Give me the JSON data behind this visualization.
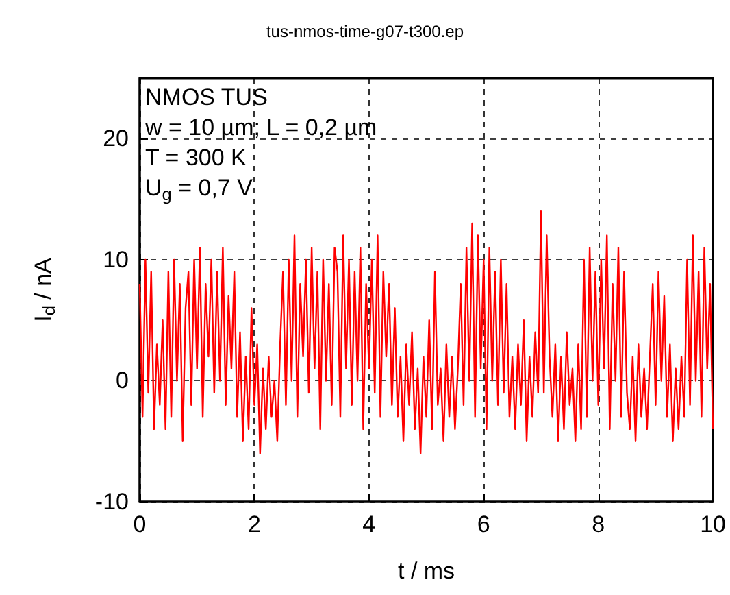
{
  "chart_data": {
    "type": "line",
    "title": "tus-nmos-time-g07-t300.ep",
    "xlabel": "t / ms",
    "ylabel": "I$_{d}$ / nA",
    "annotations": [
      "NMOS TUS",
      "w = 10 µm; L = 0,2 µm",
      "T = 300 K",
      "U$_{g}$ = 0,7 V"
    ],
    "x": [
      0,
      0.05,
      0.1,
      0.15,
      0.2,
      0.25,
      0.3,
      0.35,
      0.4,
      0.45,
      0.5,
      0.55,
      0.6,
      0.65,
      0.7,
      0.75,
      0.8,
      0.85,
      0.9,
      0.95,
      1,
      1.05,
      1.1,
      1.15,
      1.2,
      1.25,
      1.3,
      1.35,
      1.4,
      1.45,
      1.5,
      1.55,
      1.6,
      1.65,
      1.7,
      1.75,
      1.8,
      1.85,
      1.9,
      1.95,
      2,
      2.05,
      2.1,
      2.15,
      2.2,
      2.25,
      2.3,
      2.35,
      2.4,
      2.45,
      2.5,
      2.55,
      2.6,
      2.65,
      2.7,
      2.75,
      2.8,
      2.85,
      2.9,
      2.95,
      3,
      3.05,
      3.1,
      3.15,
      3.2,
      3.25,
      3.3,
      3.35,
      3.4,
      3.45,
      3.5,
      3.55,
      3.6,
      3.65,
      3.7,
      3.75,
      3.8,
      3.85,
      3.9,
      3.95,
      4,
      4.05,
      4.1,
      4.15,
      4.2,
      4.25,
      4.3,
      4.35,
      4.4,
      4.45,
      4.5,
      4.55,
      4.6,
      4.65,
      4.7,
      4.75,
      4.8,
      4.85,
      4.9,
      4.95,
      5,
      5.05,
      5.1,
      5.15,
      5.2,
      5.25,
      5.3,
      5.35,
      5.4,
      5.45,
      5.5,
      5.55,
      5.6,
      5.65,
      5.7,
      5.75,
      5.8,
      5.85,
      5.9,
      5.95,
      6,
      6.05,
      6.1,
      6.15,
      6.2,
      6.25,
      6.3,
      6.35,
      6.4,
      6.45,
      6.5,
      6.55,
      6.6,
      6.65,
      6.7,
      6.75,
      6.8,
      6.85,
      6.9,
      6.95,
      7,
      7.05,
      7.1,
      7.15,
      7.2,
      7.25,
      7.3,
      7.35,
      7.4,
      7.45,
      7.5,
      7.55,
      7.6,
      7.65,
      7.7,
      7.75,
      7.8,
      7.85,
      7.9,
      7.95,
      8,
      8.05,
      8.1,
      8.15,
      8.2,
      8.25,
      8.3,
      8.35,
      8.4,
      8.45,
      8.5,
      8.55,
      8.6,
      8.65,
      8.7,
      8.75,
      8.8,
      8.85,
      8.9,
      8.95,
      9,
      9.05,
      9.1,
      9.15,
      9.2,
      9.25,
      9.3,
      9.35,
      9.4,
      9.45,
      9.5,
      9.55,
      9.6,
      9.65,
      9.7,
      9.75,
      9.8,
      9.85,
      9.9,
      9.95,
      10
    ],
    "series": [
      {
        "color": "#ff0000",
        "values": [
          8,
          -3,
          10,
          -1,
          9,
          -4,
          3,
          -2,
          5,
          -4,
          9,
          -3,
          10,
          0,
          8,
          -5,
          6,
          9,
          -2,
          10,
          1,
          11,
          -3,
          8,
          2,
          10,
          -1,
          9,
          0,
          11,
          -2,
          7,
          1,
          9,
          -3,
          4,
          -5,
          2,
          -4,
          6,
          -2,
          3,
          -6,
          1,
          -4,
          2,
          -3,
          0,
          -5,
          3,
          9,
          -2,
          10,
          0,
          12,
          -3,
          8,
          2,
          10,
          -1,
          11,
          1,
          9,
          -4,
          10,
          0,
          8,
          -2,
          11,
          9,
          -3,
          12,
          1,
          10,
          -2,
          9,
          0,
          11,
          -4,
          8,
          1,
          10,
          -1,
          12,
          -3,
          9,
          2,
          8,
          -2,
          6,
          -3,
          2,
          -5,
          3,
          -2,
          4,
          -4,
          1,
          -6,
          2,
          -3,
          5,
          -4,
          9,
          -2,
          1,
          -5,
          3,
          -3,
          2,
          -4,
          1,
          8,
          -2,
          11,
          0,
          13,
          -3,
          12,
          1,
          10,
          -4,
          11,
          0,
          9,
          -2,
          10,
          -1,
          8,
          -3,
          2,
          -4,
          3,
          -2,
          5,
          -5,
          2,
          -3,
          4,
          -1,
          14,
          -1,
          12,
          2,
          -3,
          3,
          -5,
          2,
          -4,
          4,
          -2,
          1,
          -5,
          3,
          -4,
          10,
          -3,
          11,
          0,
          9,
          -2,
          10,
          1,
          12,
          -4,
          8,
          0,
          11,
          -3,
          9,
          -1,
          -4,
          2,
          -5,
          3,
          -3,
          1,
          -4,
          2,
          8,
          -2,
          9,
          0,
          7,
          -3,
          3,
          -5,
          1,
          -4,
          2,
          -3,
          10,
          -2,
          12,
          0,
          9,
          -3,
          11,
          1,
          8,
          -4
        ]
      }
    ],
    "xlim": [
      0,
      10
    ],
    "xticks": [
      0,
      2,
      4,
      6,
      8,
      10
    ],
    "ylim": [
      -10,
      25
    ],
    "yticks": [
      -10,
      0,
      10,
      20
    ],
    "grid": true
  }
}
